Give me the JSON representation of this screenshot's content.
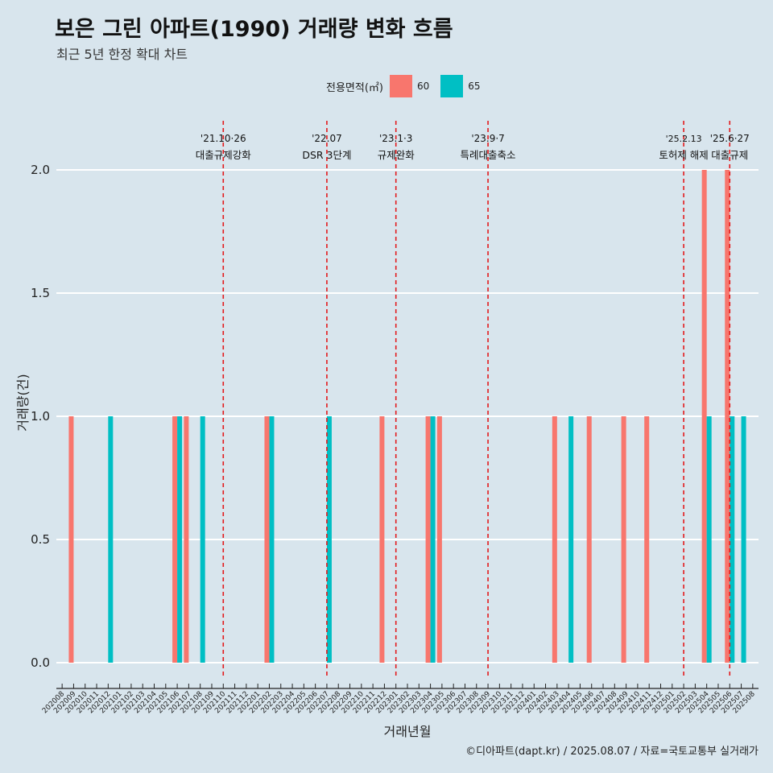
{
  "title": "보은 그린 아파트(1990) 거래량 변화 흐름",
  "subtitle": "최근 5년 한정 확대 차트",
  "caption": "©디아파트(dapt.kr) / 2025.08.07 / 자료=국토교통부 실거래가",
  "legend": {
    "title": "전용면적(㎡)",
    "items": [
      "60",
      "65"
    ]
  },
  "colors": {
    "s60": "#f8766d",
    "s65": "#00bfc4",
    "event_line": "#e31a1c",
    "background": "#d8e5ed",
    "grid": "#ffffff"
  },
  "chart_data": {
    "type": "bar",
    "xlabel": "거래년월",
    "ylabel": "거래량(건)",
    "ylim": [
      0,
      2.0
    ],
    "yticks": [
      "0.0",
      "0.5",
      "1.0",
      "1.5",
      "2.0"
    ],
    "categories": [
      "202008",
      "202009",
      "202010",
      "202011",
      "202012",
      "202101",
      "202102",
      "202103",
      "202104",
      "202105",
      "202106",
      "202107",
      "202108",
      "202109",
      "202110",
      "202111",
      "202112",
      "202201",
      "202202",
      "202203",
      "202204",
      "202205",
      "202206",
      "202207",
      "202208",
      "202209",
      "202210",
      "202211",
      "202212",
      "202301",
      "202302",
      "202303",
      "202304",
      "202305",
      "202306",
      "202307",
      "202308",
      "202309",
      "202310",
      "202311",
      "202312",
      "202401",
      "202402",
      "202403",
      "202404",
      "202405",
      "202406",
      "202407",
      "202408",
      "202409",
      "202410",
      "202411",
      "202412",
      "202501",
      "202502",
      "202503",
      "202504",
      "202505",
      "202506",
      "202507",
      "202508"
    ],
    "series": [
      {
        "name": "60",
        "values": [
          0,
          1,
          0,
          0,
          0,
          0,
          0,
          0,
          0,
          0,
          1,
          1,
          0,
          0,
          0,
          0,
          0,
          0,
          1,
          0,
          0,
          0,
          0,
          0,
          0,
          0,
          0,
          0,
          1,
          0,
          0,
          0,
          1,
          1,
          0,
          0,
          0,
          0,
          0,
          0,
          0,
          0,
          0,
          1,
          0,
          0,
          1,
          0,
          0,
          1,
          0,
          1,
          0,
          0,
          0,
          0,
          2,
          0,
          2,
          0,
          0
        ]
      },
      {
        "name": "65",
        "values": [
          0,
          0,
          0,
          0,
          1,
          0,
          0,
          0,
          0,
          0,
          1,
          0,
          1,
          0,
          0,
          0,
          0,
          0,
          1,
          0,
          0,
          0,
          0,
          1,
          0,
          0,
          0,
          0,
          0,
          0,
          0,
          0,
          1,
          0,
          0,
          0,
          0,
          0,
          0,
          0,
          0,
          0,
          0,
          0,
          1,
          0,
          0,
          0,
          0,
          0,
          0,
          0,
          0,
          0,
          0,
          0,
          1,
          0,
          1,
          1,
          0
        ]
      }
    ],
    "events": [
      {
        "month": "202110",
        "date": "'21.10·26",
        "label": "대출규제강화"
      },
      {
        "month": "202207",
        "date": "'22.07",
        "label": "DSR 3단계"
      },
      {
        "month": "202301",
        "date": "'23.1·3",
        "label": "규제완화"
      },
      {
        "month": "202309",
        "date": "'23.9·7",
        "label": "특례대출축소"
      },
      {
        "month": "202502",
        "date": "'25.2.13",
        "label": "토허제 해제"
      },
      {
        "month": "202506",
        "date": "'25.6·27",
        "label": "대출규제"
      }
    ]
  }
}
